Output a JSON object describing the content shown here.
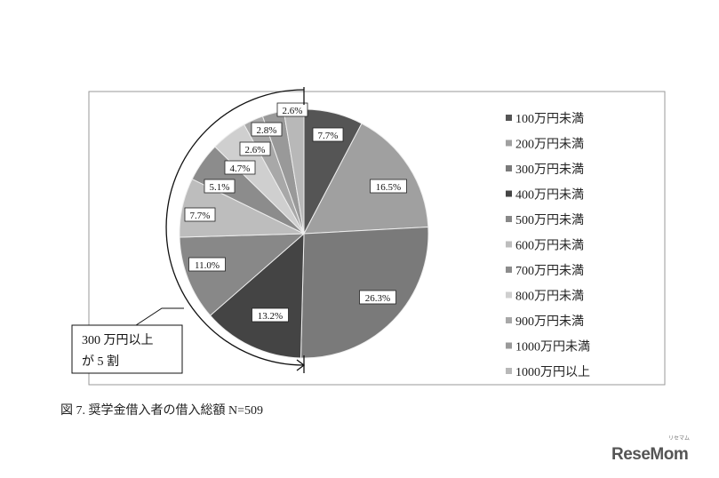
{
  "chart_data": {
    "type": "pie",
    "title": "",
    "start": "12 o'clock, clockwise",
    "legend_position": "right",
    "categories": [
      "100万円未満",
      "200万円未満",
      "300万円未満",
      "400万円未満",
      "500万円未満",
      "600万円未満",
      "700万円未満",
      "800万円未満",
      "900万円未満",
      "1000万円未満",
      "1000万円以上"
    ],
    "values": [
      7.7,
      16.5,
      26.3,
      13.2,
      11.0,
      7.7,
      5.1,
      4.7,
      2.6,
      2.8,
      2.6
    ],
    "labels": [
      "7.7%",
      "16.5%",
      "26.3%",
      "13.2%",
      "11.0%",
      "7.7%",
      "5.1%",
      "4.7%",
      "2.6%",
      "2.8%",
      "2.6%"
    ],
    "colors": [
      "#555555",
      "#a0a0a0",
      "#7a7a7a",
      "#444444",
      "#888888",
      "#bdbdbd",
      "#8c8c8c",
      "#cfcfcf",
      "#a8a8a8",
      "#999999",
      "#b8b8b8"
    ],
    "annotation": {
      "line1": "300 万円以上",
      "line2": "が 5 割"
    }
  },
  "caption": "図 7. 奨学金借入者の借入総額 N=509",
  "logo": {
    "text": "ReseMom",
    "sub": "リセマム"
  }
}
